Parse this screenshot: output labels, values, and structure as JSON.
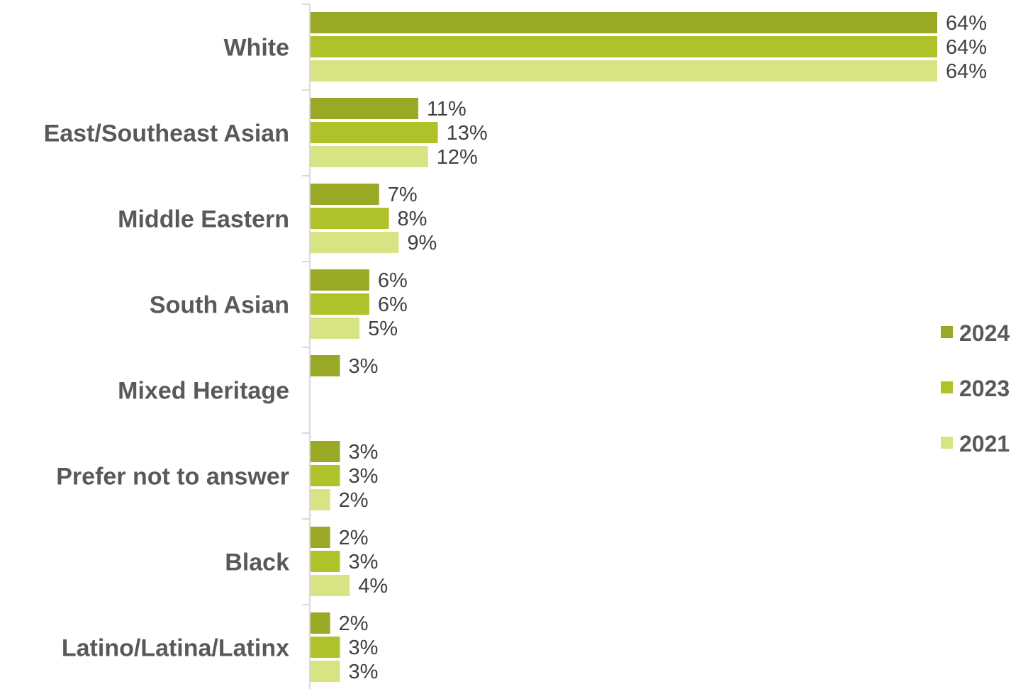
{
  "chart_data": {
    "type": "bar",
    "orientation": "horizontal",
    "categories": [
      "White",
      "East/Southeast Asian",
      "Middle Eastern",
      "South Asian",
      "Mixed Heritage",
      "Prefer not to answer",
      "Black",
      "Latino/Latina/Latinx"
    ],
    "series": [
      {
        "name": "2024",
        "color": "#99a825",
        "values": [
          64,
          11,
          7,
          6,
          3,
          3,
          2,
          2
        ],
        "labels": [
          "64%",
          "11%",
          "7%",
          "6%",
          "3%",
          "3%",
          "2%",
          "2%"
        ]
      },
      {
        "name": "2023",
        "color": "#b0c22a",
        "values": [
          64,
          13,
          8,
          6,
          null,
          3,
          3,
          3
        ],
        "labels": [
          "64%",
          "13%",
          "8%",
          "6%",
          null,
          "3%",
          "3%",
          "3%"
        ]
      },
      {
        "name": "2021",
        "color": "#d8e483",
        "values": [
          64,
          12,
          9,
          5,
          null,
          2,
          4,
          3
        ],
        "labels": [
          "64%",
          "12%",
          "9%",
          "5%",
          null,
          "2%",
          "4%",
          "3%"
        ]
      }
    ],
    "xlim": [
      0,
      64
    ],
    "grid": false,
    "legend_position": "right"
  }
}
